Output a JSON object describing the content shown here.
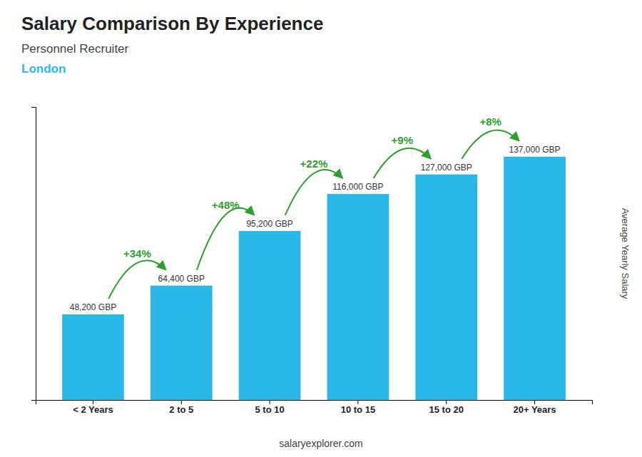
{
  "chart_data": {
    "type": "bar",
    "title": "Salary Comparison By Experience",
    "subtitle": "Personnel Recruiter",
    "annotations": [
      "London",
      "salaryexplorer.com"
    ],
    "ylabel": "Average Yearly Salary",
    "categories": [
      "< 2 Years",
      "2 to 5",
      "5 to 10",
      "10 to 15",
      "15 to 20",
      "20+ Years"
    ],
    "values": [
      48200,
      64400,
      95200,
      116000,
      127000,
      137000
    ],
    "value_labels": [
      "48,200 GBP",
      "64,400 GBP",
      "95,200 GBP",
      "116,000 GBP",
      "127,000 GBP",
      "137,000 GBP"
    ],
    "change_labels": [
      "+34%",
      "+48%",
      "+22%",
      "+9%",
      "+8%"
    ],
    "color": "#29b8e8",
    "ylim": [
      0,
      165000
    ],
    "data_labels": true,
    "tick_labels": "x",
    "grid": false
  }
}
